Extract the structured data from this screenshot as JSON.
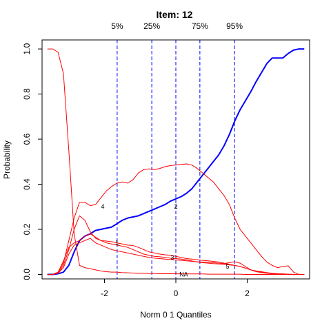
{
  "chart_data": {
    "type": "line",
    "title": "Item:  12",
    "xlabel": "Norm 0 1 Quantiles",
    "ylabel": "Probability",
    "xlim": [
      -3.75,
      3.75
    ],
    "ylim": [
      -0.02,
      1.04
    ],
    "x_ticks": [
      -2,
      0,
      2
    ],
    "x_tick_labels": [
      "-2",
      "0",
      "2"
    ],
    "y_ticks": [
      0.0,
      0.2,
      0.4,
      0.6,
      0.8,
      1.0
    ],
    "y_tick_labels": [
      "0.0",
      "0.2",
      "0.4",
      "0.6",
      "0.8",
      "1.0"
    ],
    "grid": false,
    "colors": {
      "correct": "#0000ff",
      "distractor": "#ff0000",
      "quantile_line": "#0000ff",
      "frame": "#000000"
    },
    "quantile_lines": [
      {
        "label": "5%",
        "x": -1.645
      },
      {
        "label": "25%",
        "x": -0.674
      },
      {
        "label": "",
        "x": 0.0
      },
      {
        "label": "75%",
        "x": 0.674
      },
      {
        "label": "95%",
        "x": 1.645
      }
    ],
    "x": [
      -3.6,
      -3.45,
      -3.3,
      -3.15,
      -3.0,
      -2.85,
      -2.7,
      -2.55,
      -2.4,
      -2.25,
      -2.1,
      -1.95,
      -1.8,
      -1.65,
      -1.5,
      -1.35,
      -1.2,
      -1.05,
      -0.9,
      -0.75,
      -0.6,
      -0.45,
      -0.3,
      -0.15,
      0.0,
      0.15,
      0.3,
      0.45,
      0.6,
      0.75,
      0.9,
      1.05,
      1.2,
      1.35,
      1.5,
      1.65,
      1.8,
      1.95,
      2.1,
      2.25,
      2.4,
      2.55,
      2.7,
      2.85,
      3.0,
      3.15,
      3.3,
      3.45,
      3.6
    ],
    "series": [
      {
        "name": "2",
        "role": "correct",
        "label_x": 0.0,
        "label_y": 0.3,
        "values": [
          0.0,
          0.0,
          0.003,
          0.01,
          0.04,
          0.1,
          0.15,
          0.17,
          0.18,
          0.195,
          0.2,
          0.205,
          0.21,
          0.225,
          0.24,
          0.25,
          0.255,
          0.26,
          0.27,
          0.28,
          0.29,
          0.3,
          0.31,
          0.325,
          0.335,
          0.345,
          0.36,
          0.38,
          0.41,
          0.44,
          0.47,
          0.5,
          0.53,
          0.57,
          0.62,
          0.68,
          0.73,
          0.77,
          0.81,
          0.855,
          0.895,
          0.935,
          0.96,
          0.96,
          0.96,
          0.98,
          0.995,
          1.0,
          1.0
        ]
      },
      {
        "name": "4",
        "role": "distractor",
        "label_x": -2.05,
        "label_y": 0.3,
        "values": [
          0.0,
          0.0,
          0.01,
          0.05,
          0.15,
          0.25,
          0.32,
          0.32,
          0.305,
          0.31,
          0.34,
          0.37,
          0.39,
          0.405,
          0.41,
          0.405,
          0.42,
          0.45,
          0.465,
          0.468,
          0.465,
          0.47,
          0.478,
          0.483,
          0.485,
          0.488,
          0.49,
          0.485,
          0.47,
          0.45,
          0.43,
          0.41,
          0.38,
          0.35,
          0.31,
          0.25,
          0.2,
          0.17,
          0.14,
          0.11,
          0.08,
          0.055,
          0.04,
          0.03,
          0.035,
          0.038,
          0.01,
          0.0,
          0.0
        ]
      },
      {
        "name": "1",
        "role": "distractor",
        "label_x": -1.65,
        "label_y": 0.14,
        "values": [
          0.0,
          0.0,
          0.005,
          0.04,
          0.11,
          0.2,
          0.26,
          0.24,
          0.19,
          0.16,
          0.15,
          0.148,
          0.145,
          0.14,
          0.135,
          0.13,
          0.128,
          0.12,
          0.11,
          0.1,
          0.095,
          0.09,
          0.087,
          0.085,
          0.08,
          0.075,
          0.07,
          0.068,
          0.065,
          0.062,
          0.06,
          0.058,
          0.055,
          0.05,
          0.045,
          0.04,
          0.035,
          0.028,
          0.02,
          0.015,
          0.01,
          0.007,
          0.005,
          0.003,
          0.002,
          0.001,
          0.0,
          0.0,
          0.0
        ]
      },
      {
        "name": "3",
        "role": "distractor",
        "label_x": -0.1,
        "label_y": 0.075,
        "values": [
          0.0,
          0.0,
          0.01,
          0.06,
          0.12,
          0.14,
          0.15,
          0.17,
          0.18,
          0.165,
          0.15,
          0.14,
          0.135,
          0.13,
          0.125,
          0.12,
          0.11,
          0.1,
          0.09,
          0.085,
          0.08,
          0.078,
          0.075,
          0.072,
          0.07,
          0.068,
          0.065,
          0.06,
          0.055,
          0.052,
          0.05,
          0.048,
          0.046,
          0.044,
          0.042,
          0.04,
          0.035,
          0.028,
          0.02,
          0.015,
          0.012,
          0.008,
          0.005,
          0.003,
          0.002,
          0.001,
          0.0,
          0.0,
          0.0
        ]
      },
      {
        "name": "5",
        "role": "distractor",
        "label_x": 1.45,
        "label_y": 0.035,
        "values": [
          0.0,
          0.0,
          0.005,
          0.03,
          0.09,
          0.13,
          0.14,
          0.15,
          0.16,
          0.14,
          0.13,
          0.12,
          0.11,
          0.105,
          0.1,
          0.095,
          0.09,
          0.085,
          0.08,
          0.075,
          0.072,
          0.07,
          0.068,
          0.066,
          0.064,
          0.062,
          0.06,
          0.058,
          0.056,
          0.055,
          0.054,
          0.052,
          0.05,
          0.048,
          0.052,
          0.056,
          0.05,
          0.035,
          0.02,
          0.012,
          0.008,
          0.005,
          0.003,
          0.002,
          0.001,
          0.0,
          0.0,
          0.0,
          0.0
        ]
      },
      {
        "name": "NA",
        "role": "distractor",
        "label_x": 0.22,
        "label_y": 0.0,
        "values": [
          1.0,
          1.0,
          0.985,
          0.89,
          0.55,
          0.18,
          0.04,
          0.03,
          0.025,
          0.02,
          0.015,
          0.012,
          0.01,
          0.01,
          0.008,
          0.007,
          0.006,
          0.005,
          0.005,
          0.004,
          0.004,
          0.003,
          0.003,
          0.003,
          0.003,
          0.002,
          0.002,
          0.002,
          0.002,
          0.002,
          0.001,
          0.001,
          0.001,
          0.001,
          0.001,
          0.001,
          0.001,
          0.0,
          0.0,
          0.0,
          0.0,
          0.0,
          0.0,
          0.0,
          0.0,
          0.0,
          0.0,
          0.0,
          0.0
        ]
      }
    ]
  }
}
